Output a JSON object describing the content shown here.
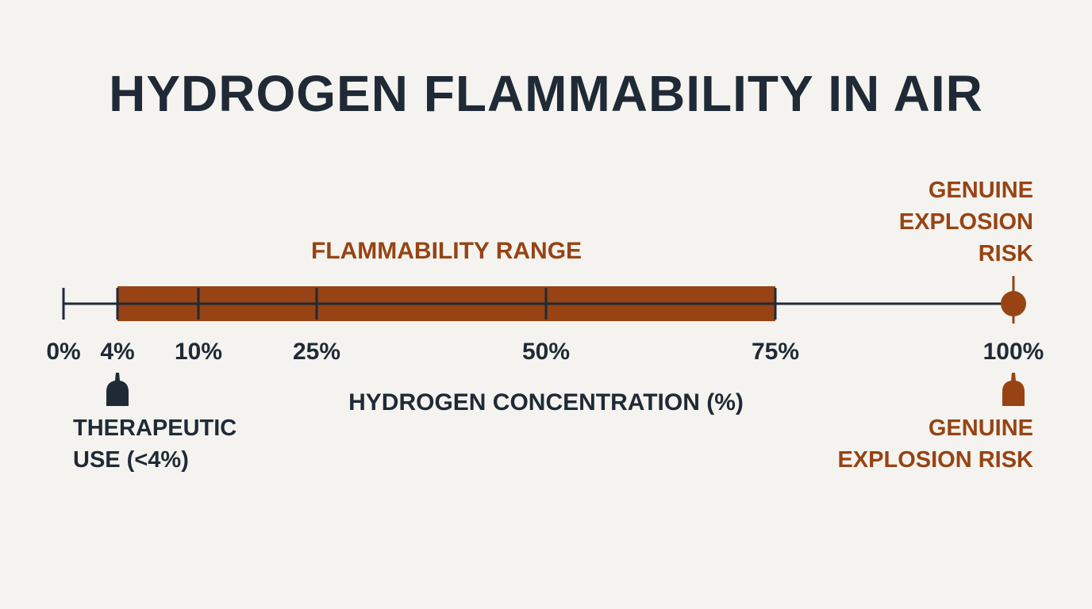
{
  "chart_data": {
    "type": "range",
    "title": "HYDROGEN FLAMMABILITY IN AIR",
    "x_label": "HYDROGEN CONCENTRATION (%)",
    "xlim": [
      0,
      100
    ],
    "xticks": [
      {
        "value": 0,
        "label": "0%"
      },
      {
        "value": 4,
        "label": "4%"
      },
      {
        "value": 10,
        "label": "10%"
      },
      {
        "value": 25,
        "label": "25%"
      },
      {
        "value": 50,
        "label": "50%"
      },
      {
        "value": 75,
        "label": "75%"
      },
      {
        "value": 100,
        "label": "100%"
      }
    ],
    "range": {
      "name": "FLAMMABILITY RANGE",
      "values": [
        4,
        75
      ],
      "color": "#974314"
    },
    "markers": [
      {
        "name": "THERAPEUTIC USE (<4%)",
        "value": 4,
        "color": "#1f2a36"
      },
      {
        "name": "GENUINE EXPLOSION RISK",
        "value": 100,
        "color": "#974314"
      }
    ],
    "annotations": [
      {
        "text": "GENUINE EXPLOSION RISK",
        "x": 100,
        "color": "#974314"
      }
    ]
  }
}
